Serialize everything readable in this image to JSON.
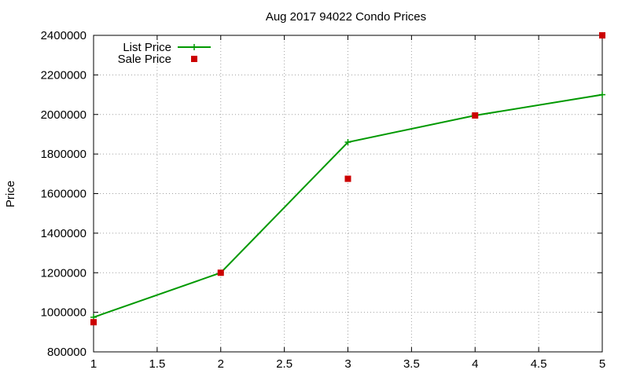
{
  "chart_data": {
    "type": "line",
    "title": "Aug 2017 94022 Condo Prices",
    "xlabel": "",
    "ylabel": "Price",
    "xlim": [
      1,
      5
    ],
    "ylim": [
      800000,
      2400000
    ],
    "x_ticks": [
      "1",
      "1.5",
      "2",
      "2.5",
      "3",
      "3.5",
      "4",
      "4.5",
      "5"
    ],
    "y_ticks": [
      "800000",
      "1000000",
      "1200000",
      "1400000",
      "1600000",
      "1800000",
      "2000000",
      "2200000",
      "2400000"
    ],
    "grid": true,
    "legend_position": "top-left",
    "series": [
      {
        "name": "List Price",
        "style": "line-with-plus-markers",
        "color": "#009900",
        "points": [
          [
            1,
            975000
          ],
          [
            2,
            1200000
          ],
          [
            3,
            1860000
          ],
          [
            4,
            1995000
          ],
          [
            5,
            2100000
          ]
        ]
      },
      {
        "name": "Sale Price",
        "style": "square-markers",
        "color": "#cc0000",
        "points": [
          [
            1,
            950000
          ],
          [
            2,
            1200000
          ],
          [
            3,
            1675000
          ],
          [
            4,
            1995000
          ],
          [
            5,
            2400000
          ]
        ]
      }
    ]
  }
}
